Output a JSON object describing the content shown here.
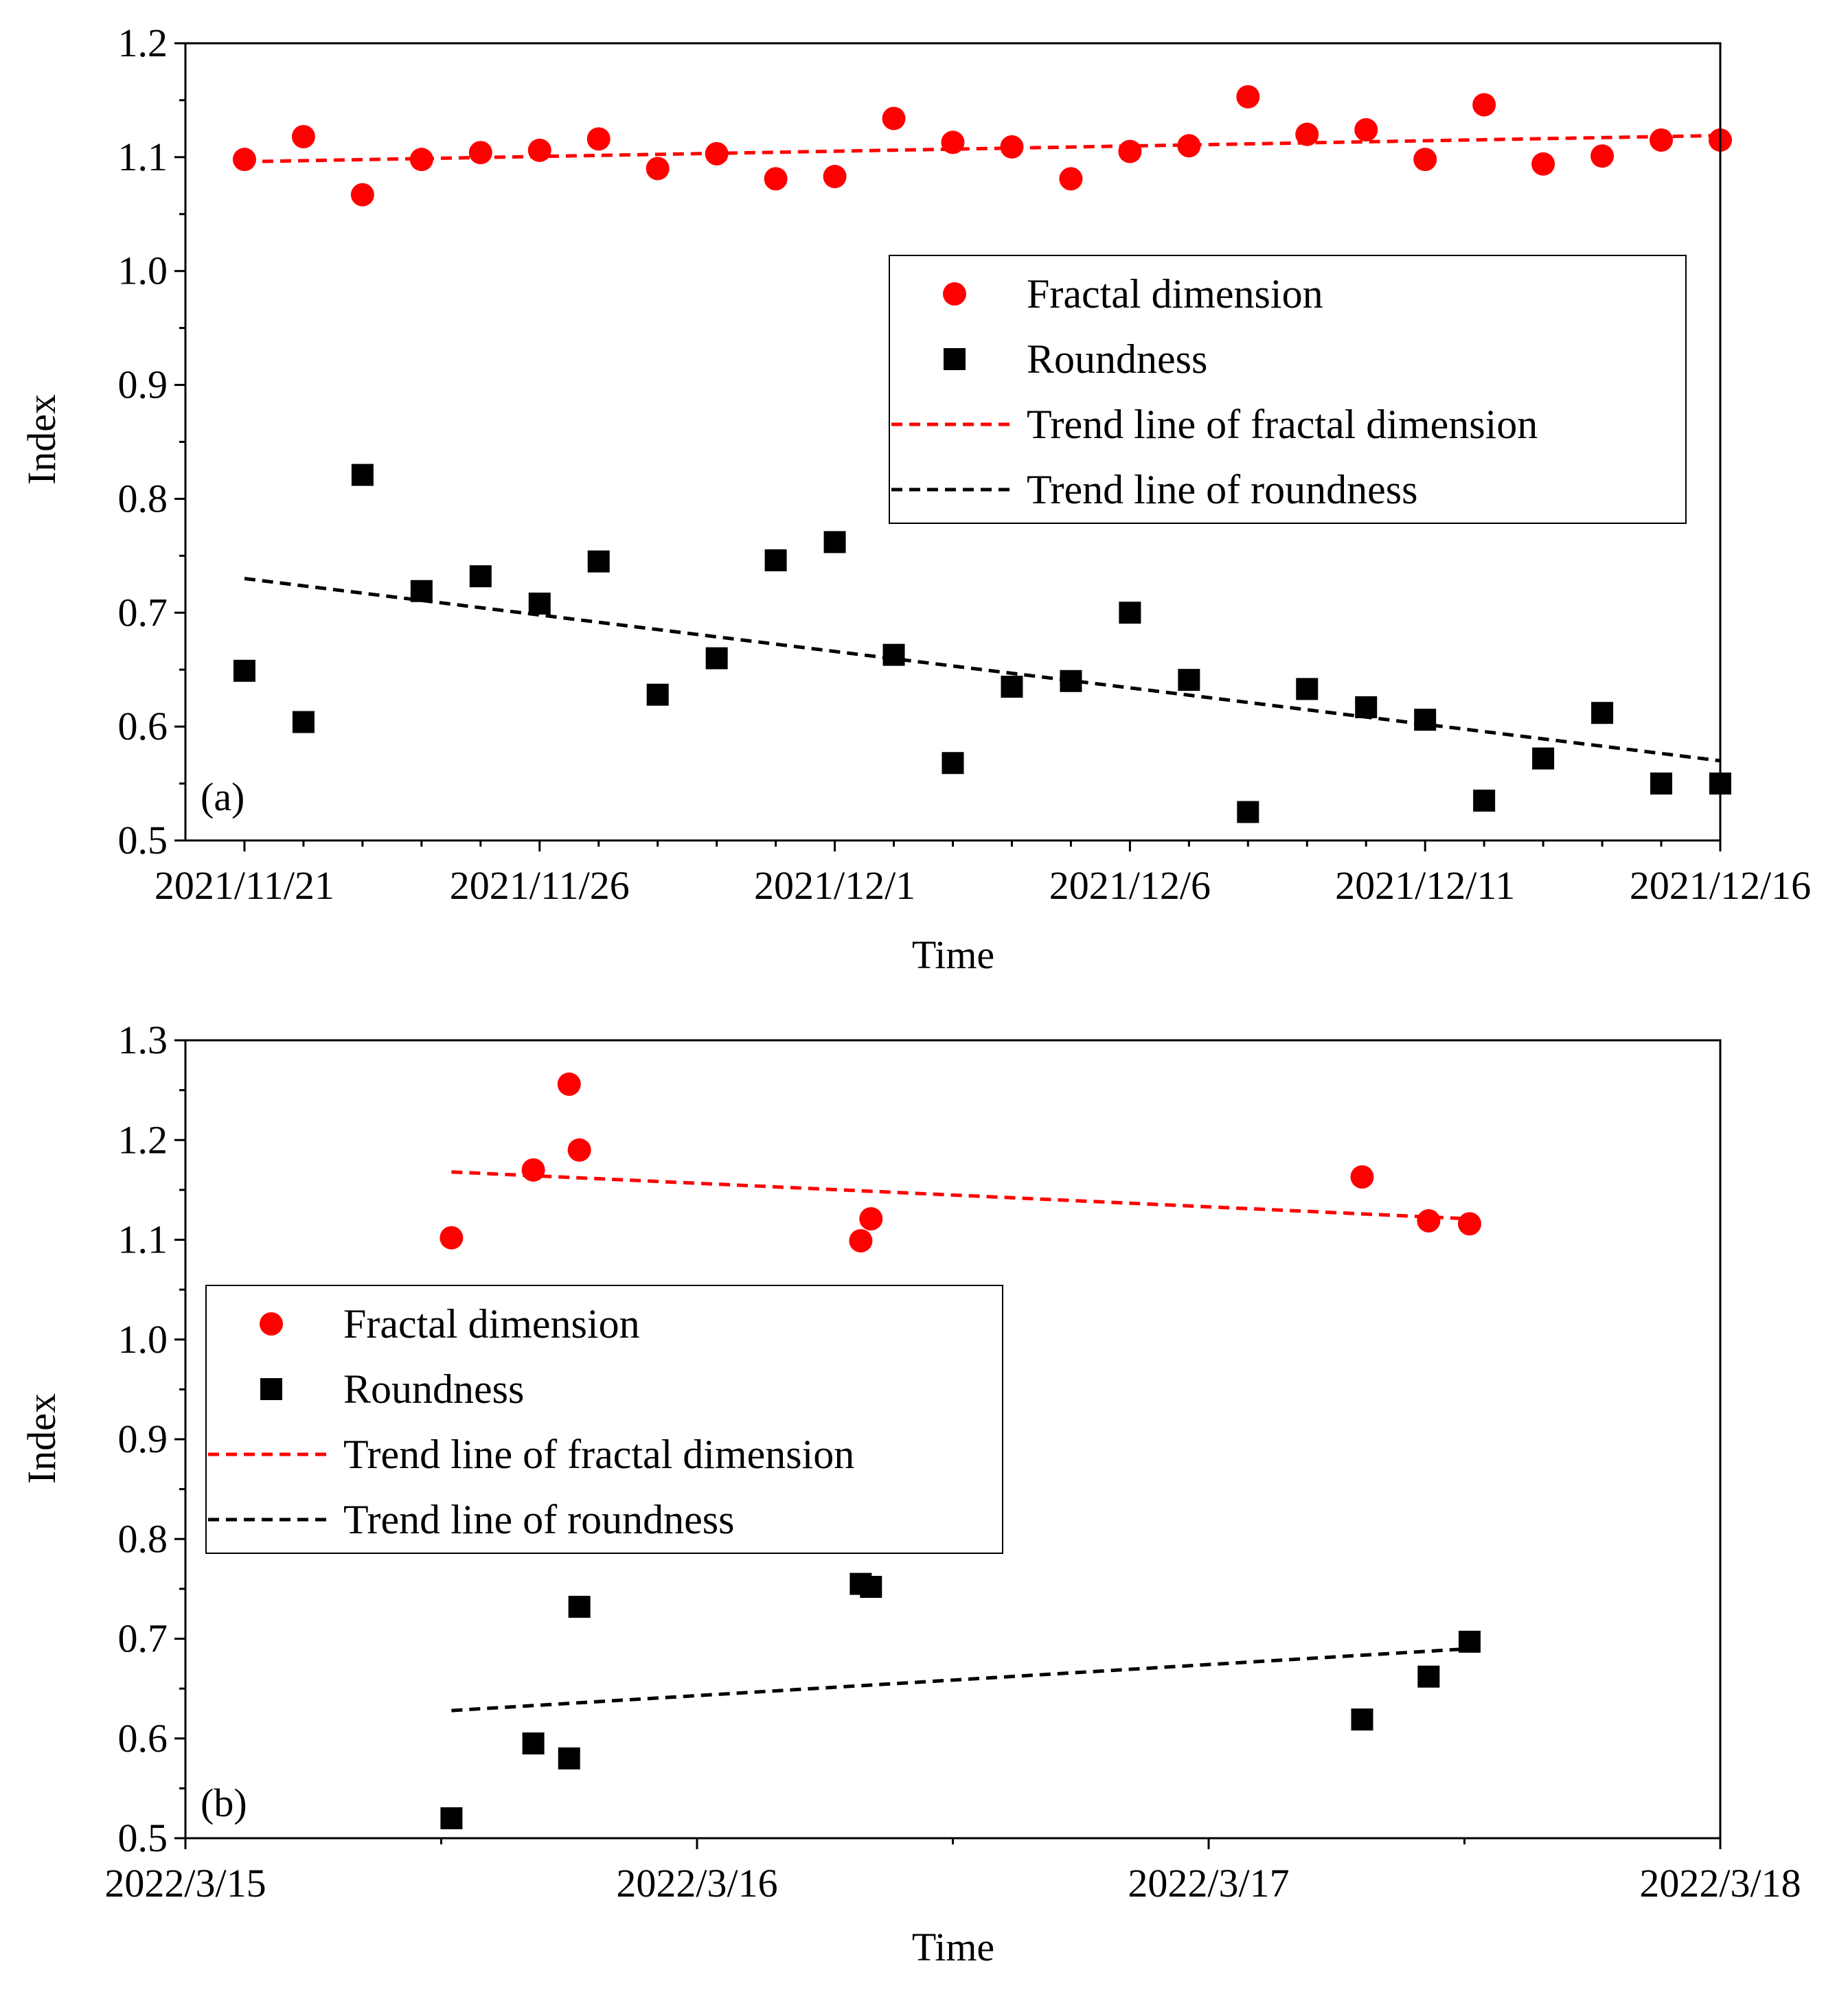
{
  "colors": {
    "fractal": "#ff0000",
    "roundness": "#000000",
    "axis": "#000000"
  },
  "chart_data": [
    {
      "panel": "(a)",
      "type": "scatter",
      "xlabel": "Time",
      "ylabel": "Index",
      "x_domain": [
        -1,
        25
      ],
      "ylim": [
        0.5,
        1.2
      ],
      "x_ticks": [
        {
          "x": 0,
          "label": "2021/11/21"
        },
        {
          "x": 5,
          "label": "2021/11/26"
        },
        {
          "x": 10,
          "label": "2021/12/1"
        },
        {
          "x": 15,
          "label": "2021/12/6"
        },
        {
          "x": 20,
          "label": "2021/12/11"
        },
        {
          "x": 25,
          "label": "2021/12/16"
        }
      ],
      "x_minor_ticks": [
        1,
        2,
        3,
        4,
        6,
        7,
        8,
        9,
        11,
        12,
        13,
        14,
        16,
        17,
        18,
        19,
        21,
        22,
        23,
        24
      ],
      "y_ticks": [
        {
          "y": 0.5,
          "label": "0.5"
        },
        {
          "y": 0.6,
          "label": "0.6"
        },
        {
          "y": 0.7,
          "label": "0.7"
        },
        {
          "y": 0.8,
          "label": "0.8"
        },
        {
          "y": 0.9,
          "label": "0.9"
        },
        {
          "y": 1.0,
          "label": "1.0"
        },
        {
          "y": 1.1,
          "label": "1.1"
        },
        {
          "y": 1.2,
          "label": "1.2"
        }
      ],
      "legend_position": "top-right",
      "series": [
        {
          "name": "Fractal dimension",
          "marker": "circle",
          "color": "#ff0000",
          "x": [
            0,
            1,
            2,
            3,
            4,
            5,
            6,
            7,
            8,
            9,
            10,
            11,
            12,
            13,
            14,
            15,
            16,
            17,
            18,
            19,
            20,
            21,
            22,
            23,
            24,
            25
          ],
          "y": [
            1.098,
            1.118,
            1.067,
            1.098,
            1.104,
            1.106,
            1.116,
            1.09,
            1.103,
            1.081,
            1.083,
            1.134,
            1.113,
            1.109,
            1.081,
            1.105,
            1.11,
            1.153,
            1.12,
            1.124,
            1.098,
            1.146,
            1.094,
            1.101,
            1.115,
            1.115
          ]
        },
        {
          "name": "Roundness",
          "marker": "square",
          "color": "#000000",
          "x": [
            0,
            1,
            2,
            3,
            4,
            5,
            6,
            7,
            8,
            9,
            10,
            11,
            12,
            13,
            14,
            15,
            16,
            17,
            18,
            19,
            20,
            21,
            22,
            23,
            24,
            25
          ],
          "y": [
            0.649,
            0.604,
            0.821,
            0.719,
            0.732,
            0.708,
            0.745,
            0.628,
            0.66,
            0.746,
            0.762,
            0.663,
            0.568,
            0.635,
            0.64,
            0.7,
            0.641,
            0.525,
            0.633,
            0.617,
            0.606,
            0.535,
            0.572,
            0.612,
            0.55,
            0.55
          ]
        }
      ],
      "trend_lines": [
        {
          "name": "Trend line of fractal dimension",
          "color": "#ff0000",
          "x": [
            0,
            25
          ],
          "y": [
            1.096,
            1.119
          ]
        },
        {
          "name": "Trend line of roundness",
          "color": "#000000",
          "x": [
            0,
            25
          ],
          "y": [
            0.73,
            0.57
          ]
        }
      ]
    },
    {
      "panel": "(b)",
      "type": "scatter",
      "xlabel": "Time",
      "ylabel": "Index",
      "x_domain": [
        0,
        3
      ],
      "ylim": [
        0.5,
        1.3
      ],
      "x_ticks": [
        {
          "x": 0,
          "label": "2022/3/15"
        },
        {
          "x": 1,
          "label": "2022/3/16"
        },
        {
          "x": 2,
          "label": "2022/3/17"
        },
        {
          "x": 3,
          "label": "2022/3/18"
        }
      ],
      "x_minor_ticks": [
        0.5,
        1.5,
        2.5
      ],
      "y_ticks": [
        {
          "y": 0.5,
          "label": "0.5"
        },
        {
          "y": 0.6,
          "label": "0.6"
        },
        {
          "y": 0.7,
          "label": "0.7"
        },
        {
          "y": 0.8,
          "label": "0.8"
        },
        {
          "y": 0.9,
          "label": "0.9"
        },
        {
          "y": 1.0,
          "label": "1.0"
        },
        {
          "y": 1.1,
          "label": "1.1"
        },
        {
          "y": 1.2,
          "label": "1.2"
        },
        {
          "y": 1.3,
          "label": "1.3"
        }
      ],
      "legend_position": "middle-left",
      "series": [
        {
          "name": "Fractal dimension",
          "marker": "circle",
          "color": "#ff0000",
          "x": [
            0.52,
            0.68,
            0.75,
            0.77,
            1.32,
            1.34,
            2.3,
            2.43,
            2.51
          ],
          "y": [
            1.102,
            1.17,
            1.256,
            1.19,
            1.099,
            1.121,
            1.163,
            1.119,
            1.116
          ]
        },
        {
          "name": "Roundness",
          "marker": "square",
          "color": "#000000",
          "x": [
            0.52,
            0.68,
            0.75,
            0.77,
            1.32,
            1.34,
            2.3,
            2.43,
            2.51
          ],
          "y": [
            0.52,
            0.595,
            0.58,
            0.732,
            0.755,
            0.752,
            0.619,
            0.662,
            0.697
          ]
        }
      ],
      "trend_lines": [
        {
          "name": "Trend line of fractal dimension",
          "color": "#ff0000",
          "x": [
            0.52,
            2.51
          ],
          "y": [
            1.168,
            1.121
          ]
        },
        {
          "name": "Trend line of roundness",
          "color": "#000000",
          "x": [
            0.52,
            2.51
          ],
          "y": [
            0.628,
            0.69
          ]
        }
      ]
    }
  ]
}
